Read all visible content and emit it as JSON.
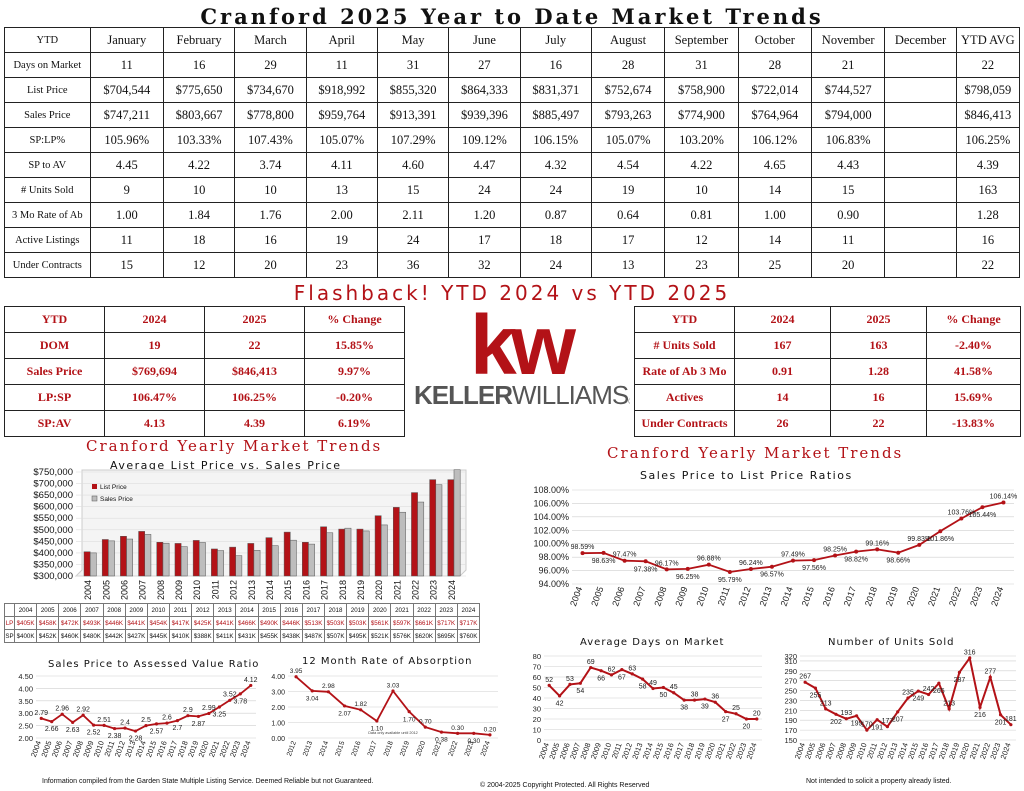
{
  "title": "Cranford 2025 Year to Date Market Trends",
  "ytd_table": {
    "headers": [
      "YTD",
      "January",
      "February",
      "March",
      "April",
      "May",
      "June",
      "July",
      "August",
      "September",
      "October",
      "November",
      "December",
      "YTD AVG"
    ],
    "rows": [
      [
        "Days on Market",
        "11",
        "16",
        "29",
        "11",
        "31",
        "27",
        "16",
        "28",
        "31",
        "28",
        "21",
        "",
        "22"
      ],
      [
        "List Price",
        "$704,544",
        "$775,650",
        "$734,670",
        "$918,992",
        "$855,320",
        "$864,333",
        "$831,371",
        "$752,674",
        "$758,900",
        "$722,014",
        "$744,527",
        "",
        "$798,059"
      ],
      [
        "Sales Price",
        "$747,211",
        "$803,667",
        "$778,800",
        "$959,764",
        "$913,391",
        "$939,396",
        "$885,497",
        "$793,263",
        "$774,900",
        "$764,964",
        "$794,000",
        "",
        "$846,413"
      ],
      [
        "SP:LP%",
        "105.96%",
        "103.33%",
        "107.43%",
        "105.07%",
        "107.29%",
        "109.12%",
        "106.15%",
        "105.07%",
        "103.20%",
        "106.12%",
        "106.83%",
        "",
        "106.25%"
      ],
      [
        "SP to AV",
        "4.45",
        "4.22",
        "3.74",
        "4.11",
        "4.60",
        "4.47",
        "4.32",
        "4.54",
        "4.22",
        "4.65",
        "4.43",
        "",
        "4.39"
      ],
      [
        "# Units Sold",
        "9",
        "10",
        "10",
        "13",
        "15",
        "24",
        "24",
        "19",
        "10",
        "14",
        "15",
        "",
        "163"
      ],
      [
        "3 Mo Rate of Ab",
        "1.00",
        "1.84",
        "1.76",
        "2.00",
        "2.11",
        "1.20",
        "0.87",
        "0.64",
        "0.81",
        "1.00",
        "0.90",
        "",
        "1.28"
      ],
      [
        "Active Listings",
        "11",
        "18",
        "16",
        "19",
        "24",
        "17",
        "18",
        "17",
        "12",
        "14",
        "11",
        "",
        "16"
      ],
      [
        "Under Contracts",
        "15",
        "12",
        "20",
        "23",
        "36",
        "32",
        "24",
        "13",
        "23",
        "25",
        "20",
        "",
        "22"
      ]
    ]
  },
  "flashback_title": "Flashback!  YTD 2024 vs YTD 2025",
  "compare_left": {
    "headers": [
      "YTD",
      "2024",
      "2025",
      "% Change"
    ],
    "rows": [
      [
        "DOM",
        "19",
        "22",
        "15.85%"
      ],
      [
        "Sales Price",
        "$769,694",
        "$846,413",
        "9.97%"
      ],
      [
        "LP:SP",
        "106.47%",
        "106.25%",
        "-0.20%"
      ],
      [
        "SP:AV",
        "4.13",
        "4.39",
        "6.19%"
      ]
    ]
  },
  "compare_right": {
    "headers": [
      "YTD",
      "2024",
      "2025",
      "% Change"
    ],
    "rows": [
      [
        "# Units Sold",
        "167",
        "163",
        "-2.40%"
      ],
      [
        "Rate of Ab 3 Mo",
        "0.91",
        "1.28",
        "41.58%"
      ],
      [
        "Actives",
        "14",
        "16",
        "15.69%"
      ],
      [
        "Under Contracts",
        "26",
        "22",
        "-13.83%"
      ]
    ]
  },
  "logo": {
    "mark": "kw",
    "text_bold": "KELLER",
    "text_light": "WILLIAMS",
    "reg": "®"
  },
  "colors": {
    "brand_red": "#b31217",
    "gray_bar": "#bdbdbd",
    "line_red": "#b31217"
  },
  "lp_table": {
    "years": [
      "2004",
      "2005",
      "2006",
      "2007",
      "2008",
      "2009",
      "2010",
      "2011",
      "2012",
      "2013",
      "2014",
      "2015",
      "2016",
      "2017",
      "2018",
      "2019",
      "2020",
      "2021",
      "2022",
      "2023",
      "2024"
    ],
    "lp_label": "LP",
    "sp_label": "SP",
    "lp": [
      "$405K",
      "$458K",
      "$472K",
      "$493K",
      "$446K",
      "$441K",
      "$454K",
      "$417K",
      "$425K",
      "$441K",
      "$466K",
      "$490K",
      "$446K",
      "$513K",
      "$503K",
      "$503K",
      "$561K",
      "$597K",
      "$661K",
      "$717K",
      "$717K"
    ],
    "sp": [
      "$400K",
      "$452K",
      "$460K",
      "$480K",
      "$442K",
      "$427K",
      "$445K",
      "$410K",
      "$388K",
      "$411K",
      "$431K",
      "$455K",
      "$438K",
      "$487K",
      "$507K",
      "$495K",
      "$521K",
      "$576K",
      "$620K",
      "$695K",
      "$760K"
    ]
  },
  "chart_data": [
    {
      "type": "bar",
      "heading": "Cranford Yearly Market Trends",
      "title": "Average List Price vs. Sales Price",
      "categories": [
        "2004",
        "2005",
        "2006",
        "2007",
        "2008",
        "2009",
        "2010",
        "2011",
        "2012",
        "2013",
        "2014",
        "2015",
        "2016",
        "2017",
        "2018",
        "2019",
        "2020",
        "2021",
        "2022",
        "2023",
        "2024"
      ],
      "series": [
        {
          "name": "List Price",
          "values": [
            405000,
            458000,
            472000,
            493000,
            446000,
            441000,
            454000,
            417000,
            425000,
            441000,
            466000,
            490000,
            446000,
            513000,
            503000,
            503000,
            561000,
            597000,
            661000,
            717000,
            717000
          ]
        },
        {
          "name": "Sales Price",
          "values": [
            400000,
            452000,
            460000,
            480000,
            442000,
            427000,
            445000,
            410000,
            388000,
            411000,
            431000,
            455000,
            438000,
            487000,
            507000,
            495000,
            521000,
            576000,
            620000,
            695000,
            760000
          ]
        }
      ],
      "ylim": [
        300000,
        750000
      ],
      "yticks": [
        "$750,000",
        "$700,000",
        "$650,000",
        "$600,000",
        "$550,000",
        "$500,000",
        "$450,000",
        "$400,000",
        "$350,000",
        "$300,000"
      ],
      "legend_position": "top-left"
    },
    {
      "type": "line",
      "heading": "Cranford Yearly Market Trends",
      "title": "Sales Price to List Price Ratios",
      "categories": [
        "2004",
        "2005",
        "2006",
        "2007",
        "2008",
        "2009",
        "2010",
        "2011",
        "2012",
        "2013",
        "2014",
        "2015",
        "2016",
        "2017",
        "2018",
        "2019",
        "2020",
        "2021",
        "2022",
        "2023",
        "2024"
      ],
      "values": [
        98.59,
        98.63,
        97.47,
        97.38,
        96.17,
        96.25,
        96.88,
        95.79,
        96.24,
        96.57,
        97.49,
        97.56,
        98.25,
        98.82,
        99.16,
        98.66,
        99.83,
        101.86,
        103.76,
        105.44,
        106.14
      ],
      "labels": [
        "98.59%",
        "98.63%",
        "97.47%",
        "97.38%",
        "96.17%",
        "96.25%",
        "96.88%",
        "95.79%",
        "96.24%",
        "96.57%",
        "97.49%",
        "97.56%",
        "98.25%",
        "98.82%",
        "99.16%",
        "98.66%",
        "99.83%",
        "101.86%",
        "103.76%",
        "105.44%",
        "106.14%"
      ],
      "ylim": [
        94,
        108
      ],
      "yticks": [
        "108.00%",
        "106.00%",
        "104.00%",
        "102.00%",
        "100.00%",
        "98.00%",
        "96.00%",
        "94.00%"
      ]
    },
    {
      "type": "line",
      "title": "Sales Price to Assessed Value Ratio",
      "categories": [
        "2004",
        "2005",
        "2006",
        "2007",
        "2008",
        "2009",
        "2010",
        "2011",
        "2012",
        "2013",
        "2014",
        "2015",
        "2016",
        "2017",
        "2018",
        "2019",
        "2020",
        "2021",
        "2022",
        "2023",
        "2024"
      ],
      "values": [
        2.79,
        2.66,
        2.96,
        2.63,
        2.92,
        2.52,
        2.51,
        2.38,
        2.4,
        2.28,
        2.5,
        2.57,
        2.6,
        2.7,
        2.9,
        2.87,
        2.99,
        3.25,
        3.52,
        3.78,
        4.12
      ],
      "ylim": [
        2.0,
        4.5
      ],
      "yticks": [
        "4.50",
        "4.00",
        "3.50",
        "3.00",
        "2.50",
        "2.00"
      ]
    },
    {
      "type": "line",
      "title": "12 Month Rate of Absorption",
      "categories": [
        "2012",
        "2013",
        "2014",
        "2015",
        "2016",
        "2017",
        "2018",
        "2019",
        "2020",
        "2021",
        "2022",
        "2023",
        "2024"
      ],
      "values": [
        3.95,
        3.04,
        2.98,
        2.07,
        1.82,
        1.1,
        3.03,
        1.7,
        0.7,
        0.38,
        0.3,
        0.3,
        0.2
      ],
      "labels": [
        "3.95",
        "3.04",
        "2.98",
        "2.07",
        "1.82",
        "1.10",
        "3.03",
        "1.70",
        "0.70",
        "0.38",
        "0.30",
        "0.30",
        "0.20"
      ],
      "ylim": [
        0,
        4
      ],
      "yticks": [
        "4.00",
        "3.00",
        "2.00",
        "1.00",
        "0.00"
      ],
      "note": "Data only available until 2012"
    },
    {
      "type": "line",
      "title": "Average Days on Market",
      "categories": [
        "2004",
        "2005",
        "2006",
        "2007",
        "2008",
        "2009",
        "2010",
        "2011",
        "2012",
        "2013",
        "2014",
        "2015",
        "2016",
        "2017",
        "2018",
        "2019",
        "2020",
        "2021",
        "2022",
        "2023",
        "2024"
      ],
      "values": [
        52,
        42,
        53,
        54,
        69,
        66,
        62,
        67,
        63,
        58,
        49,
        50,
        45,
        38,
        38,
        39,
        36,
        27,
        25,
        20,
        20
      ],
      "ylim": [
        0,
        80
      ],
      "yticks": [
        "80",
        "70",
        "60",
        "50",
        "40",
        "30",
        "20",
        "10",
        "0"
      ]
    },
    {
      "type": "line",
      "title": "Number of Units Sold",
      "categories": [
        "2004",
        "2005",
        "2006",
        "2007",
        "2008",
        "2009",
        "2010",
        "2011",
        "2012",
        "2013",
        "2014",
        "2015",
        "2016",
        "2017",
        "2018",
        "2019",
        "2020",
        "2021",
        "2022",
        "2023",
        "2024"
      ],
      "values": [
        267,
        255,
        213,
        202,
        193,
        199,
        170,
        191,
        177,
        207,
        235,
        249,
        242,
        265,
        213,
        287,
        316,
        216,
        277,
        201,
        181
      ],
      "ylim": [
        150,
        320
      ],
      "yticks": [
        "320",
        "310",
        "290",
        "270",
        "250",
        "230",
        "210",
        "190",
        "170",
        "150"
      ]
    }
  ],
  "footer": {
    "left": "Information compiled from the Garden State Multiple Listing Service.  Deemed Reliable but not Guaranteed.",
    "center": "© 2004-2025 Copyright Protected.  All Rights Reserved",
    "right": "Not intended to solicit a property already listed."
  }
}
